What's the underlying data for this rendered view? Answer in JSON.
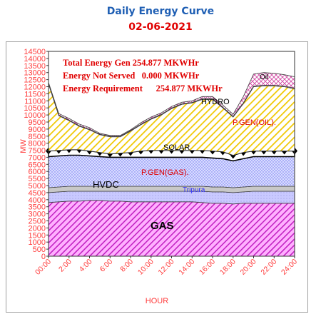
{
  "header": {
    "title": "Daily Energy Curve",
    "date": "02-06-2021"
  },
  "stats": [
    "Total Energy Gen 254.877 MKWHr",
    "Energy Not Served   0.000 MKWHr",
    "Energy Requirement      254.877 MKWHr"
  ],
  "colors": {
    "gas": "#d030d0",
    "tripura": "#c8c8ff",
    "hvdc_band": "#c8c8c8",
    "pgen_gas": "#c8d0ff",
    "solar": "#ffffff",
    "oil": "#f2d020",
    "hydro": "#ffffff",
    "oil_top": "#d0d0d0",
    "text_red": "#ff3b3b",
    "title_blue": "#1f5fb4"
  },
  "chart_data": {
    "type": "area",
    "title": "Daily Energy Curve",
    "subtitle": "02-06-2021",
    "xlabel": "HOUR",
    "ylabel": "MW",
    "ylim": [
      0,
      14500
    ],
    "yticks": [
      "0",
      "500",
      "1000",
      "1500",
      "2000",
      "2500",
      "3000",
      "3500",
      "4000",
      "4500",
      "5000",
      "5500",
      "6000",
      "6500",
      "7000",
      "7500",
      "8000",
      "8500",
      "9000",
      "9500",
      "10000",
      "10500",
      "11000",
      "11500",
      "12000",
      "12500",
      "13000",
      "13500",
      "14000",
      "14500"
    ],
    "xticks": [
      "00:00",
      "2:00",
      "4:00",
      "6:00",
      "8:00",
      "10:00",
      "12:00",
      "14:00",
      "16:00",
      "18:00",
      "20:00",
      "22:00",
      "24:00"
    ],
    "x_hours": [
      0,
      1,
      2,
      3,
      4,
      5,
      6,
      7,
      8,
      9,
      10,
      11,
      12,
      13,
      14,
      15,
      16,
      17,
      18,
      19,
      20,
      21,
      22,
      23,
      24
    ],
    "series": [
      {
        "name": "GAS",
        "cumulative": [
          3800,
          3850,
          3900,
          3900,
          3950,
          3950,
          3900,
          3900,
          3850,
          3850,
          3850,
          3850,
          3850,
          3850,
          3850,
          3800,
          3750,
          3750,
          3700,
          3750,
          3750,
          3750,
          3750,
          3750,
          3750
        ]
      },
      {
        "name": "Tripura",
        "cumulative": [
          4500,
          4550,
          4600,
          4600,
          4600,
          4600,
          4600,
          4600,
          4600,
          4600,
          4600,
          4600,
          4600,
          4600,
          4600,
          4600,
          4550,
          4550,
          4500,
          4550,
          4600,
          4600,
          4600,
          4600,
          4600
        ]
      },
      {
        "name": "HVDC",
        "cumulative": [
          4850,
          4900,
          4950,
          4950,
          4950,
          4950,
          4950,
          4950,
          4950,
          4950,
          4950,
          4950,
          4950,
          4950,
          4950,
          4950,
          4900,
          4900,
          4850,
          4900,
          4950,
          4950,
          4950,
          4950,
          4950
        ]
      },
      {
        "name": "P.GEN(GAS).",
        "cumulative": [
          7050,
          7100,
          7150,
          7150,
          7100,
          7050,
          7000,
          7000,
          7000,
          7000,
          7000,
          7000,
          7000,
          7000,
          7000,
          7000,
          6950,
          6900,
          6750,
          6900,
          7050,
          7050,
          7050,
          7050,
          7050
        ]
      },
      {
        "name": "SOLAR",
        "cumulative": [
          7450,
          7500,
          7550,
          7550,
          7450,
          7350,
          7250,
          7300,
          7350,
          7450,
          7500,
          7500,
          7500,
          7500,
          7500,
          7500,
          7450,
          7400,
          7150,
          7350,
          7450,
          7450,
          7450,
          7450,
          7450
        ]
      },
      {
        "name": "P.GEN(OIL).",
        "cumulative": [
          12200,
          9950,
          9600,
          9200,
          8950,
          8600,
          8450,
          8450,
          8850,
          9300,
          9700,
          10000,
          10450,
          10750,
          10850,
          11100,
          11100,
          10500,
          9850,
          10800,
          12000,
          12050,
          12050,
          12000,
          11850
        ]
      },
      {
        "name": "HYDRO",
        "cumulative": [
          12250,
          9990,
          9640,
          9240,
          8990,
          8640,
          8490,
          8490,
          8890,
          9340,
          9740,
          10040,
          10490,
          10790,
          10890,
          11150,
          11150,
          10550,
          9900,
          10850,
          12050,
          12100,
          12100,
          12050,
          11900
        ]
      },
      {
        "name": "Oil",
        "cumulative": [
          12300,
          10100,
          9750,
          9350,
          9100,
          8700,
          8550,
          8550,
          8950,
          9450,
          9850,
          10150,
          10600,
          10900,
          11000,
          11300,
          11300,
          10700,
          10050,
          11300,
          12900,
          13000,
          12950,
          12850,
          12700
        ]
      }
    ],
    "annotations": [
      "GAS",
      "HVDC",
      "Tripura",
      "P.GEN(GAS).",
      "SOLAR",
      "P.GEN(OIL).",
      "HYDRO",
      "Oil"
    ],
    "grid": false,
    "legend": "none"
  }
}
